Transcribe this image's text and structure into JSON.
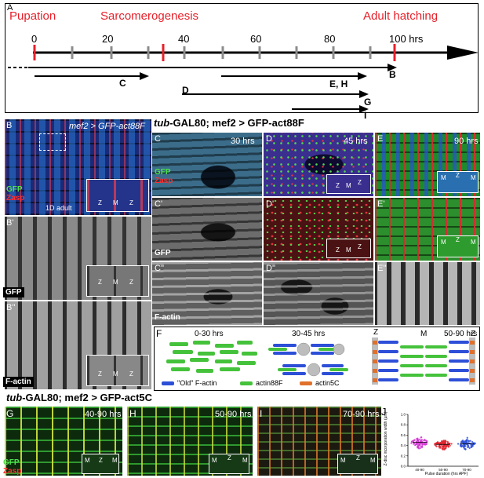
{
  "panel_a": {
    "letter": "A",
    "labels": {
      "pupation": "Pupation",
      "sarcomerogenesis": "Sarcomerogenesis",
      "adult_hatching": "Adult hatching"
    },
    "ticks": [
      "0",
      "20",
      "40",
      "60",
      "80",
      "100 hrs"
    ],
    "arrows": [
      "C",
      "D",
      "E, H",
      "B",
      "G",
      "I"
    ],
    "colors": {
      "highlight": "#e8202a",
      "tick": "#8c8c8c"
    }
  },
  "panel_b": {
    "letter": "B",
    "letter2": "B'",
    "letter3": "B''",
    "genotype": "mef2 > GFP-act88F",
    "stage": "1D adult",
    "channels": [
      "GFP",
      "Zasp"
    ],
    "gfp_label": "GFP",
    "factin_label": "F-actin",
    "zm": [
      "Z",
      "M",
      "Z"
    ]
  },
  "top_title": {
    "tub": "tub",
    "rest": "-GAL80; mef2 > GFP-act88F"
  },
  "panel_c": {
    "letters": [
      "C",
      "C'",
      "C''"
    ],
    "time": "30 hrs",
    "gfp": "GFP",
    "factin": "F-actin",
    "channels": [
      "GFP",
      "Zasp"
    ]
  },
  "panel_d": {
    "letters": [
      "D",
      "D'",
      "D''"
    ],
    "time": "45 hrs",
    "zm": [
      "Z",
      "M",
      "Z"
    ]
  },
  "panel_e": {
    "letters": [
      "E",
      "E'",
      "E''"
    ],
    "time": "90 hrs",
    "zm": [
      "M",
      "Z",
      "M"
    ]
  },
  "panel_f": {
    "letter": "F",
    "stages": [
      "0-30 hrs",
      "30-45 hrs",
      "50-90 hrs"
    ],
    "z": "Z",
    "m": "M",
    "legend": [
      "\"Old\" F-actin",
      "actin88F",
      "actin5C"
    ],
    "colors": {
      "old": "#2d4fd8",
      "act88f": "#45c23b",
      "act5c": "#e0702a"
    }
  },
  "bottom_title": {
    "tub": "tub",
    "rest": "-GAL80; mef2 > GFP-act5C"
  },
  "panel_g": {
    "letter": "G",
    "time": "40-90 hrs",
    "channels": [
      "GFP",
      "Zasp"
    ],
    "zm": [
      "M",
      "Z",
      "M"
    ]
  },
  "panel_h": {
    "letter": "H",
    "time": "50-90 hrs",
    "zm": [
      "M",
      "Z",
      "M"
    ]
  },
  "panel_i": {
    "letter": "I",
    "time": "70-90 hrs",
    "zm": [
      "M",
      "Z",
      "M"
    ]
  },
  "panel_j": {
    "letter": "J",
    "chart_data": {
      "type": "scatter",
      "categories": [
        "40-90",
        "50-90",
        "70-90"
      ],
      "xlabel": "Pulse duration (hrs APF)",
      "ylabel": "Z-disc incorporation width (µm)",
      "ylim": [
        0,
        1
      ],
      "yticks": [
        "0.0",
        "0.2",
        "0.4",
        "0.6",
        "0.8",
        "1.0"
      ],
      "means": [
        0.46,
        0.42,
        0.43
      ],
      "colors": [
        "#d23ad2",
        "#e0202a",
        "#2d4fd8"
      ]
    }
  }
}
